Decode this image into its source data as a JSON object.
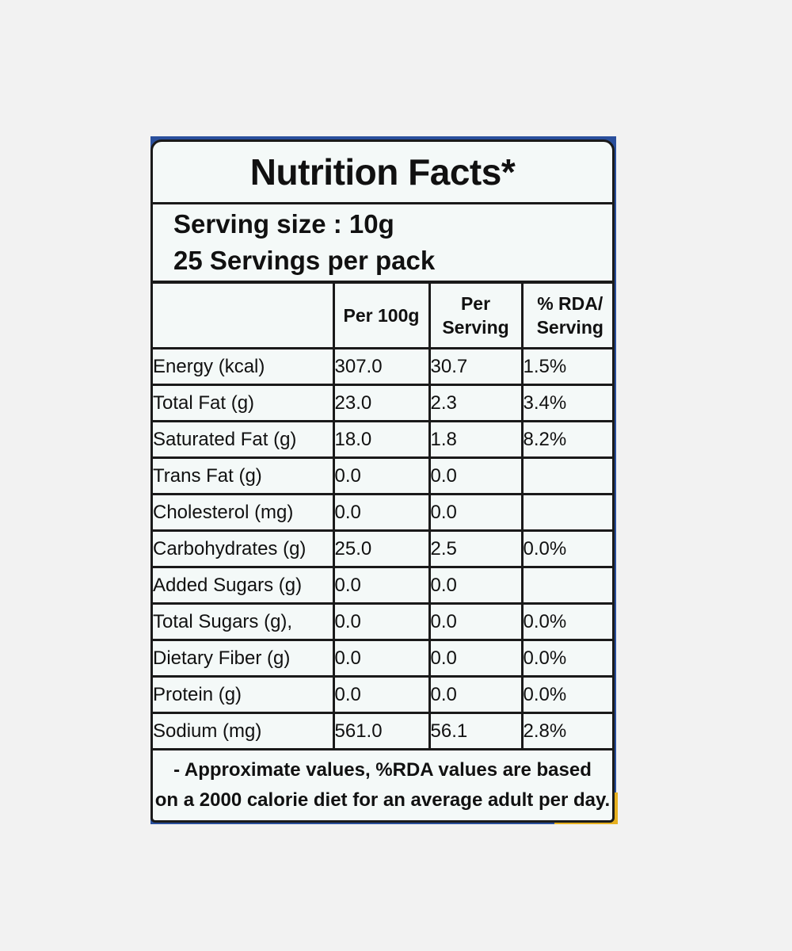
{
  "label": {
    "title": "Nutrition Facts*",
    "serving_size": "Serving size : 10g",
    "servings_per_pack": "25 Servings per pack",
    "headers": {
      "per_100g": "Per 100g",
      "per_serving_line1": "Per",
      "per_serving_line2": "Serving",
      "rda_line1": "% RDA/",
      "rda_line2": "Serving"
    },
    "rows": [
      {
        "nutrient": "Energy (kcal)",
        "per_100g": "307.0",
        "per_serving": "30.7",
        "rda": "1.5%"
      },
      {
        "nutrient": "Total Fat (g)",
        "per_100g": "23.0",
        "per_serving": "2.3",
        "rda": "3.4%"
      },
      {
        "nutrient": "Saturated Fat (g)",
        "per_100g": "18.0",
        "per_serving": "1.8",
        "rda": "8.2%"
      },
      {
        "nutrient": "Trans Fat (g)",
        "per_100g": "0.0",
        "per_serving": "0.0",
        "rda": ""
      },
      {
        "nutrient": "Cholesterol (mg)",
        "per_100g": "0.0",
        "per_serving": "0.0",
        "rda": ""
      },
      {
        "nutrient": "Carbohydrates (g)",
        "per_100g": "25.0",
        "per_serving": "2.5",
        "rda": "0.0%"
      },
      {
        "nutrient": "Added Sugars (g)",
        "per_100g": "0.0",
        "per_serving": "0.0",
        "rda": ""
      },
      {
        "nutrient": "Total Sugars (g),",
        "per_100g": "0.0",
        "per_serving": "0.0",
        "rda": "0.0%"
      },
      {
        "nutrient": "Dietary Fiber (g)",
        "per_100g": "0.0",
        "per_serving": "0.0",
        "rda": "0.0%"
      },
      {
        "nutrient": "Protein (g)",
        "per_100g": "0.0",
        "per_serving": "0.0",
        "rda": "0.0%"
      },
      {
        "nutrient": "Sodium (mg)",
        "per_100g": "561.0",
        "per_serving": "56.1",
        "rda": "2.8%"
      }
    ],
    "footnote_line1": "- Approximate values, %RDA values are based",
    "footnote_line2": "on a 2000 calorie diet for an average adult per day."
  },
  "colors": {
    "background": "#f2f2f2",
    "label_background": "#f4f9f8",
    "ink": "#111111",
    "pack_blue": "#2a4f9c",
    "pack_yellow": "#e6b020"
  }
}
